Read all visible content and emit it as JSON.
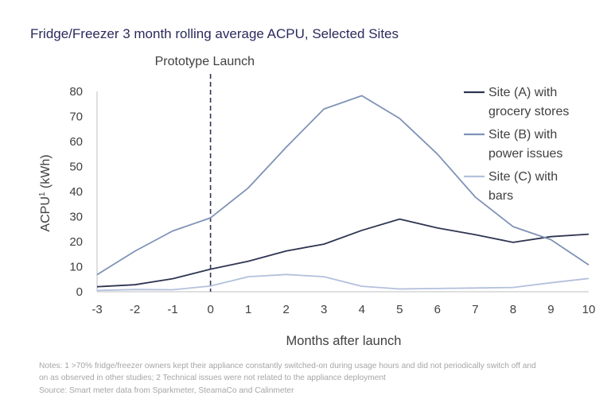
{
  "title": "Fridge/Freezer 3 month rolling average ACPU, Selected Sites",
  "chart_data": {
    "type": "line",
    "title": "Fridge/Freezer 3 month rolling average ACPU, Selected Sites",
    "xlabel": "Months after launch",
    "ylabel_main": "ACPU",
    "ylabel_sup": "1",
    "ylabel_unit": " (kWh)",
    "x": [
      -3,
      -2,
      -1,
      0,
      1,
      2,
      3,
      4,
      5,
      6,
      7,
      8,
      9,
      10
    ],
    "x_tick_labels": [
      "-3",
      "-2",
      "-1",
      "0",
      "1",
      "2",
      "3",
      "4",
      "5",
      "6",
      "7",
      "8",
      "9",
      "10"
    ],
    "ylim": [
      0,
      80
    ],
    "y_ticks": [
      0,
      10,
      20,
      30,
      40,
      50,
      60,
      70,
      80
    ],
    "grid": false,
    "legend_position": "top-right",
    "annotation": {
      "label": "Prototype Launch",
      "x": 0
    },
    "series": [
      {
        "name_lines": [
          "Site (A) with",
          "grocery stores"
        ],
        "color": "#2e3551",
        "values": [
          2.0,
          2.8,
          5.2,
          9.0,
          12.2,
          16.3,
          19.0,
          24.5,
          29.0,
          25.5,
          22.8,
          19.7,
          22.0,
          23.0
        ]
      },
      {
        "name_lines": [
          "Site (B) with",
          "power issues"
        ],
        "color": "#7f93b6",
        "values": [
          6.8,
          16.2,
          24.3,
          29.5,
          41.5,
          57.7,
          73.0,
          78.3,
          69.2,
          55.0,
          37.8,
          26.0,
          20.8,
          10.7
        ]
      },
      {
        "name_lines": [
          "Site (C) with",
          "bars"
        ],
        "color": "#b3c1dc",
        "values": [
          0.5,
          0.9,
          0.8,
          2.3,
          6.0,
          6.9,
          6.0,
          2.2,
          1.1,
          1.3,
          1.5,
          1.7,
          3.6,
          5.3
        ]
      }
    ]
  },
  "notes": [
    "Notes: 1 >70% fridge/freezer owners kept their appliance constantly switched-on during usage hours and did not periodically switch off and",
    "on as observed  in other studies; 2 Technical issues were not related to the appliance deployment",
    "Source: Smart meter data from Sparkmeter, SteamaCo and Calinmeter"
  ]
}
